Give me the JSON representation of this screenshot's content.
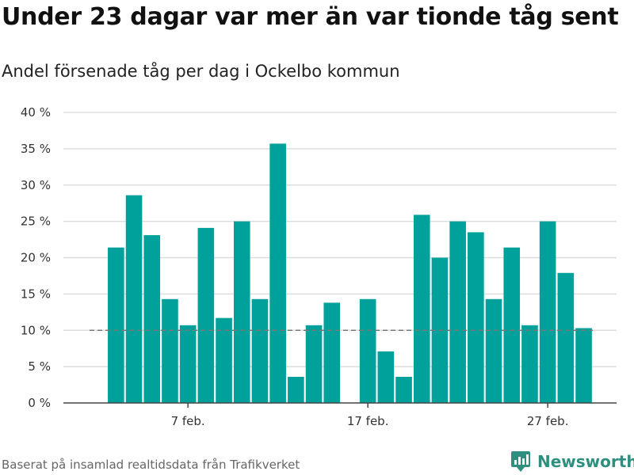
{
  "colors": {
    "bar": "#00a19a",
    "grid": "#dddddd",
    "axis": "#444444",
    "reference_line": "#777777",
    "brand": "#2f8f7f"
  },
  "footer": {
    "source": "Baserat på insamlad realtidsdata från Trafikverket",
    "brand_name": "Newsworthy",
    "brand_icon": "newsworthy-logo-icon"
  },
  "chart_data": {
    "type": "bar",
    "title": "Under 23 dagar var mer än var tionde tåg sent",
    "subtitle": "Andel försenade tåg per dag i Ockelbo kommun",
    "xlabel": "",
    "ylabel": "",
    "x_start": "2024-02-01",
    "x_end": "2024-02-29",
    "x_ticks": [
      {
        "date": "2024-02-07",
        "label": "7 feb."
      },
      {
        "date": "2024-02-17",
        "label": "17 feb."
      },
      {
        "date": "2024-02-27",
        "label": "27 feb."
      }
    ],
    "ylim": [
      0,
      40
    ],
    "y_ticks": [
      0,
      5,
      10,
      15,
      20,
      25,
      30,
      35,
      40
    ],
    "y_tick_suffix": " %",
    "grid": true,
    "legend": "none",
    "reference_line": {
      "y": 10,
      "style": "dashed"
    },
    "series": [
      {
        "points": [
          {
            "x": "2024-02-03",
            "y": 21.4
          },
          {
            "x": "2024-02-04",
            "y": 28.6
          },
          {
            "x": "2024-02-05",
            "y": 23.1
          },
          {
            "x": "2024-02-06",
            "y": 14.3
          },
          {
            "x": "2024-02-07",
            "y": 10.7
          },
          {
            "x": "2024-02-08",
            "y": 24.1
          },
          {
            "x": "2024-02-09",
            "y": 11.7
          },
          {
            "x": "2024-02-10",
            "y": 25.0
          },
          {
            "x": "2024-02-11",
            "y": 14.3
          },
          {
            "x": "2024-02-12",
            "y": 35.7
          },
          {
            "x": "2024-02-13",
            "y": 3.6
          },
          {
            "x": "2024-02-14",
            "y": 10.7
          },
          {
            "x": "2024-02-15",
            "y": 13.8
          },
          {
            "x": "2024-02-17",
            "y": 14.3
          },
          {
            "x": "2024-02-18",
            "y": 7.1
          },
          {
            "x": "2024-02-19",
            "y": 3.6
          },
          {
            "x": "2024-02-20",
            "y": 25.9
          },
          {
            "x": "2024-02-21",
            "y": 20.0
          },
          {
            "x": "2024-02-22",
            "y": 25.0
          },
          {
            "x": "2024-02-23",
            "y": 23.5
          },
          {
            "x": "2024-02-24",
            "y": 14.3
          },
          {
            "x": "2024-02-25",
            "y": 21.4
          },
          {
            "x": "2024-02-26",
            "y": 10.7
          },
          {
            "x": "2024-02-27",
            "y": 25.0
          },
          {
            "x": "2024-02-28",
            "y": 17.9
          },
          {
            "x": "2024-02-29",
            "y": 10.3
          }
        ]
      }
    ]
  }
}
